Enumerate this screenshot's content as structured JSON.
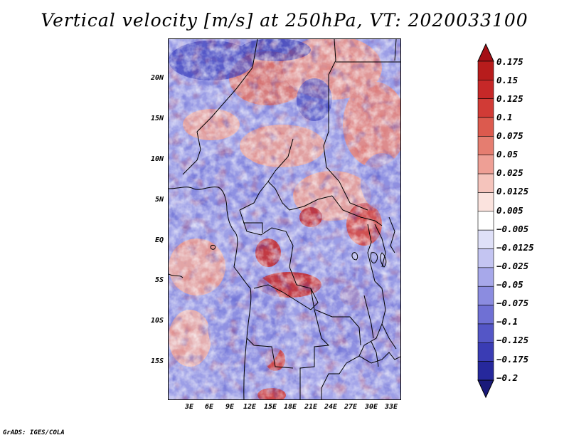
{
  "title": "Vertical velocity [m/s] at 250hPa, VT: 2020033100",
  "footer": "GrADS: IGES/COLA",
  "map": {
    "lat_labels": [
      "20N",
      "15N",
      "10N",
      "5N",
      "EQ",
      "5S",
      "10S",
      "15S"
    ],
    "lon_labels": [
      "3E",
      "6E",
      "9E",
      "12E",
      "15E",
      "18E",
      "21E",
      "24E",
      "27E",
      "30E",
      "33E"
    ],
    "lat_range": [
      -20,
      24.5
    ],
    "lon_range": [
      0,
      34.5
    ],
    "field": "vertical velocity (w)",
    "units": "m/s",
    "level": "250hPa",
    "valid_time": "2020033100"
  },
  "colorbar": {
    "labels": [
      "0.175",
      "0.15",
      "0.125",
      "0.1",
      "0.075",
      "0.05",
      "0.025",
      "0.0125",
      "0.005",
      "−0.005",
      "−0.0125",
      "−0.025",
      "−0.05",
      "−0.075",
      "−0.1",
      "−0.125",
      "−0.175",
      "−0.2"
    ],
    "colors": [
      "#a50f15",
      "#b71c1c",
      "#c62828",
      "#d13b36",
      "#dc5a4e",
      "#e57d70",
      "#ee9f95",
      "#f5c4bc",
      "#fbe3de",
      "#ffffff",
      "#dfe0f8",
      "#c4c5f2",
      "#a7a8ea",
      "#8b8ce0",
      "#6f70d4",
      "#5456c6",
      "#3a3cb4",
      "#26289c",
      "#1a1a7a"
    ]
  }
}
